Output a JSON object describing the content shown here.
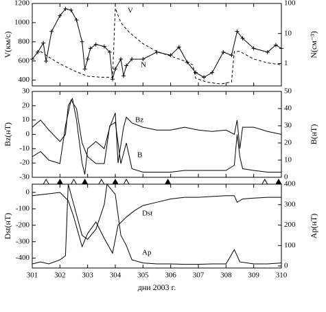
{
  "chart_data": [
    {
      "type": "line",
      "ylabel": "V(км/с)",
      "y2label": "N(см⁻³)",
      "ylim": [
        340,
        1200
      ],
      "yticks": [
        400,
        600,
        800,
        1000,
        1200
      ],
      "y2lim": [
        0.18,
        100
      ],
      "y2ticks": [
        1,
        10,
        100
      ],
      "y2log": true,
      "series": [
        {
          "name": "V",
          "color": "#000",
          "style": "dash",
          "axis": "y",
          "x": [
            301.3,
            301.6,
            302.0,
            302.5,
            303.0,
            303.5,
            303.9,
            304.0,
            304.2,
            304.5,
            305.0,
            305.5,
            306.0,
            306.5,
            306.8,
            306.9,
            307.3,
            307.8,
            308.2,
            308.3,
            308.5,
            309.0,
            309.5,
            310.0
          ],
          "values": [
            700,
            640,
            570,
            500,
            440,
            430,
            430,
            1150,
            1000,
            900,
            780,
            700,
            650,
            600,
            560,
            420,
            380,
            360,
            380,
            700,
            700,
            620,
            580,
            560
          ]
        },
        {
          "name": "N",
          "color": "#000",
          "style": "solid",
          "marker": "cross",
          "axis": "y2",
          "x": [
            301.0,
            301.2,
            301.4,
            301.5,
            301.7,
            302.0,
            302.2,
            302.4,
            302.6,
            302.8,
            302.9,
            303.0,
            303.1,
            303.3,
            303.6,
            303.8,
            303.9,
            304.0,
            304.2,
            304.3,
            304.4,
            304.6,
            305.0,
            305.5,
            306.0,
            306.3,
            306.6,
            306.9,
            307.2,
            307.5,
            307.9,
            308.2,
            308.4,
            308.6,
            309.0,
            309.5,
            309.8,
            310.0
          ],
          "values": [
            1.4,
            2.4,
            4.8,
            1.2,
            11.7,
            39,
            66,
            60,
            28,
            5.3,
            0.66,
            1.4,
            3.2,
            4.3,
            3.7,
            2.4,
            0.3,
            0.66,
            1.4,
            0.39,
            0.85,
            1.4,
            1.4,
            2.4,
            1.9,
            3.5,
            1.1,
            0.5,
            0.35,
            0.5,
            2.4,
            1.9,
            11.7,
            6.9,
            3.2,
            2.4,
            4.1,
            3.2
          ]
        }
      ]
    },
    {
      "type": "line",
      "ylabel": "Bz(нТ)",
      "y2label": "B(нТ)",
      "ylim": [
        -30,
        30
      ],
      "yticks": [
        -30,
        -20,
        -10,
        0,
        10,
        20,
        30
      ],
      "y2lim": [
        0,
        50
      ],
      "y2ticks": [
        0,
        10,
        20,
        30,
        40,
        50
      ],
      "events_open": [
        301.5,
        302.5,
        303.5,
        304.4,
        309.4
      ],
      "events_filled": [
        302.0,
        302.9,
        304.0,
        305.9,
        309.9
      ],
      "series": [
        {
          "name": "Bz",
          "color": "#000",
          "style": "solid",
          "axis": "y",
          "x": [
            301.0,
            301.3,
            301.6,
            302.0,
            302.2,
            302.3,
            302.45,
            302.6,
            302.8,
            302.9,
            303.0,
            303.3,
            303.6,
            303.8,
            304.0,
            304.1,
            304.3,
            304.4,
            304.6,
            305.0,
            305.5,
            306.0,
            306.5,
            307.0,
            307.5,
            308.0,
            308.3,
            308.4,
            308.5,
            308.6,
            309.0,
            309.5,
            310.0
          ],
          "values": [
            5,
            10,
            3,
            -5,
            0,
            20,
            25,
            10,
            -20,
            -28,
            -10,
            -5,
            -10,
            5,
            15,
            -20,
            5,
            12,
            8,
            5,
            3,
            3,
            5,
            3,
            2,
            3,
            0,
            10,
            -10,
            5,
            5,
            2,
            0
          ]
        },
        {
          "name": "B",
          "color": "#000",
          "style": "solid",
          "axis": "y2",
          "x": [
            301.0,
            301.3,
            301.6,
            302.0,
            302.2,
            302.4,
            302.6,
            302.8,
            303.0,
            303.3,
            303.6,
            303.8,
            304.0,
            304.2,
            304.4,
            304.6,
            305.0,
            305.5,
            306.0,
            306.5,
            307.0,
            307.5,
            308.0,
            308.3,
            308.4,
            308.5,
            308.6,
            309.0,
            309.5,
            310.0
          ],
          "values": [
            12,
            15,
            10,
            8,
            30,
            45,
            40,
            20,
            12,
            8,
            8,
            30,
            32,
            8,
            20,
            5,
            3,
            3,
            3,
            4,
            4,
            4,
            4,
            7,
            25,
            12,
            5,
            4,
            3,
            3
          ]
        }
      ]
    },
    {
      "type": "line",
      "ylabel": "Dst(нТ)",
      "y2label": "Ap(нТ)",
      "xlabel": "дни 2003 г.",
      "xlim": [
        301,
        310
      ],
      "xticks": [
        301,
        302,
        303,
        304,
        305,
        306,
        307,
        308,
        309,
        310
      ],
      "ylim": [
        -460,
        50
      ],
      "yticks": [
        -400,
        -300,
        -200,
        -100,
        0
      ],
      "y2lim": [
        -10,
        400
      ],
      "y2ticks": [
        0,
        100,
        200,
        300,
        400
      ],
      "series": [
        {
          "name": "Dst",
          "color": "#000",
          "style": "solid",
          "axis": "y",
          "x": [
            301.0,
            301.5,
            302.0,
            302.3,
            302.5,
            302.8,
            303.0,
            303.3,
            303.6,
            303.9,
            304.1,
            304.4,
            304.7,
            305.0,
            305.5,
            306.0,
            306.5,
            307.0,
            307.5,
            308.0,
            308.3,
            308.4,
            308.6,
            309.0,
            309.5,
            310.0
          ],
          "values": [
            -20,
            -10,
            0,
            -50,
            -150,
            -330,
            -250,
            -180,
            -280,
            -370,
            -200,
            -150,
            -110,
            -80,
            -60,
            -40,
            -30,
            -30,
            -25,
            -20,
            -20,
            -60,
            -40,
            -35,
            -30,
            -30
          ]
        },
        {
          "name": "Ap",
          "color": "#000",
          "style": "solid",
          "axis": "y2",
          "x": [
            301.0,
            301.3,
            301.6,
            302.0,
            302.2,
            302.3,
            302.5,
            302.8,
            303.0,
            303.3,
            303.6,
            303.7,
            304.0,
            304.2,
            304.4,
            304.6,
            305.0,
            305.5,
            306.0,
            306.5,
            307.0,
            307.5,
            308.0,
            308.3,
            308.5,
            309.0,
            309.5,
            310.0
          ],
          "values": [
            10,
            20,
            10,
            30,
            50,
            400,
            300,
            150,
            130,
            180,
            300,
            400,
            350,
            150,
            100,
            30,
            15,
            10,
            10,
            8,
            8,
            10,
            10,
            80,
            20,
            10,
            10,
            15
          ]
        }
      ]
    }
  ]
}
